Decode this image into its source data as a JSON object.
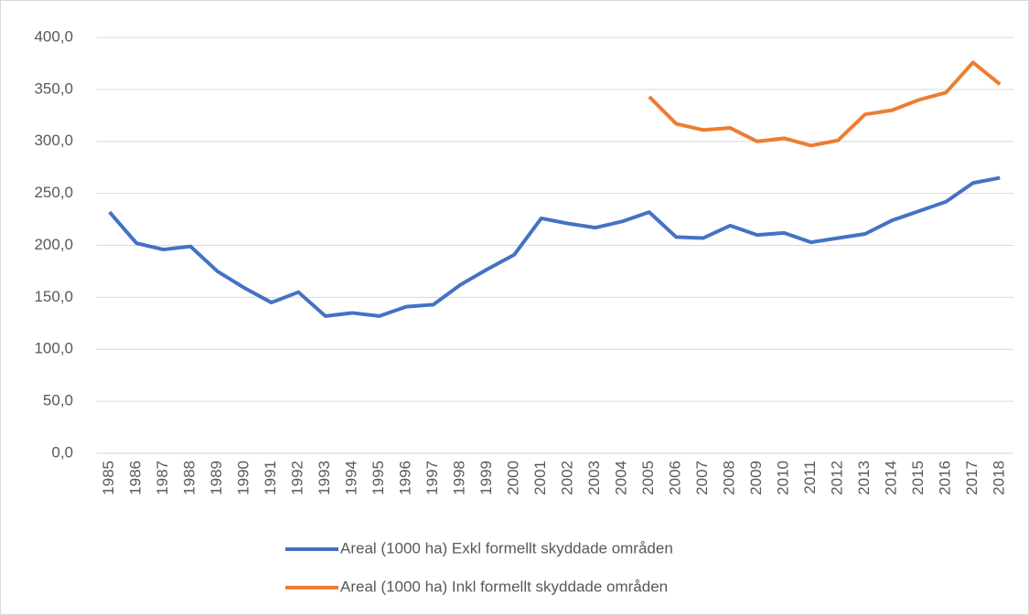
{
  "chart_data": {
    "type": "line",
    "categories": [
      "1985",
      "1986",
      "1987",
      "1988",
      "1989",
      "1990",
      "1991",
      "1992",
      "1993",
      "1994",
      "1995",
      "1996",
      "1997",
      "1998",
      "1999",
      "2000",
      "2001",
      "2002",
      "2003",
      "2004",
      "2005",
      "2006",
      "2007",
      "2008",
      "2009",
      "2010",
      "2011",
      "2012",
      "2013",
      "2014",
      "2015",
      "2016",
      "2017",
      "2018"
    ],
    "series": [
      {
        "name": "Areal (1000 ha) Exkl formellt skyddade områden",
        "color": "#4472c4",
        "values": [
          232,
          202,
          196,
          199,
          175,
          159,
          145,
          155,
          132,
          135,
          132,
          141,
          143,
          162,
          177,
          191,
          226,
          221,
          217,
          223,
          232,
          208,
          207,
          219,
          210,
          212,
          203,
          207,
          211,
          224,
          233,
          242,
          260,
          265
        ]
      },
      {
        "name": "Areal (1000 ha) Inkl formellt skyddade områden",
        "color": "#ed7d31",
        "values": [
          null,
          null,
          null,
          null,
          null,
          null,
          null,
          null,
          null,
          null,
          null,
          null,
          null,
          null,
          null,
          null,
          null,
          null,
          null,
          null,
          343,
          317,
          311,
          313,
          300,
          303,
          296,
          301,
          326,
          330,
          340,
          347,
          376,
          355
        ]
      }
    ],
    "ylim": [
      0,
      400
    ],
    "yticks": [
      {
        "value": 0,
        "label": "0,0"
      },
      {
        "value": 50,
        "label": "50,0"
      },
      {
        "value": 100,
        "label": "100,0"
      },
      {
        "value": 150,
        "label": "150,0"
      },
      {
        "value": 200,
        "label": "200,0"
      },
      {
        "value": 250,
        "label": "250,0"
      },
      {
        "value": 300,
        "label": "300,0"
      },
      {
        "value": 350,
        "label": "350,0"
      },
      {
        "value": 400,
        "label": "400,0"
      }
    ],
    "grid": true
  }
}
